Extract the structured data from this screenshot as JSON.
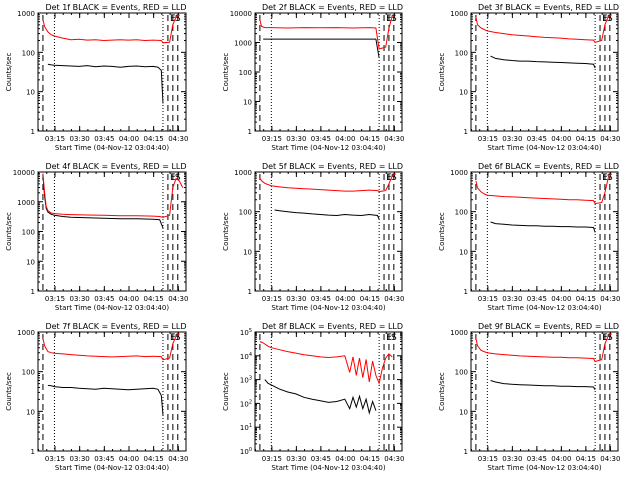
{
  "chart_data": [
    {
      "type": "line",
      "title": "Det 1f BLACK = Events, RED = LLD",
      "xlabel": "Start Time (04-Nov-12 03:04:40)",
      "ylabel": "Counts/sec",
      "xticks": [
        "03:15",
        "03:30",
        "03:45",
        "04:00",
        "04:15",
        "04:30"
      ],
      "yticks": [
        "1",
        "10",
        "100",
        "1000"
      ],
      "ylim": [
        1,
        1000
      ],
      "yscale": "log",
      "xlim_min": [
        5,
        90
      ],
      "markers": [
        {
          "label": "E",
          "t": 82
        },
        {
          "label": "S",
          "t": 85
        }
      ],
      "series": [
        {
          "name": "BLACK = Events",
          "color": "#000000",
          "x": [
            6,
            8,
            10,
            15,
            20,
            25,
            30,
            35,
            40,
            45,
            50,
            55,
            60,
            65,
            70,
            73,
            75,
            76
          ],
          "y": [
            50,
            48,
            47,
            46,
            45,
            44,
            46,
            43,
            45,
            44,
            42,
            44,
            45,
            43,
            44,
            42,
            35,
            5
          ]
        },
        {
          "name": "RED = LLD",
          "color": "#ff0000",
          "x": [
            3,
            4,
            6,
            8,
            10,
            15,
            20,
            25,
            30,
            35,
            40,
            45,
            50,
            55,
            60,
            65,
            70,
            75,
            76,
            80,
            82,
            84,
            86
          ],
          "y": [
            700,
            450,
            330,
            280,
            260,
            230,
            210,
            215,
            205,
            210,
            200,
            205,
            210,
            205,
            210,
            200,
            205,
            200,
            175,
            180,
            500,
            800,
            900
          ]
        }
      ]
    },
    {
      "type": "line",
      "title": "Det 2f BLACK = Events, RED = LLD",
      "xlabel": "Start Time (04-Nov-12 03:04:40)",
      "ylabel": "Counts/sec",
      "xticks": [
        "03:15",
        "03:30",
        "03:45",
        "04:00",
        "04:15",
        "04:30"
      ],
      "yticks": [
        "1",
        "10",
        "100",
        "1000",
        "10000"
      ],
      "ylim": [
        1,
        10000
      ],
      "yscale": "log",
      "markers": [
        {
          "label": "E",
          "t": 82
        },
        {
          "label": "S",
          "t": 85
        }
      ],
      "series": [
        {
          "name": "BLACK = Events",
          "color": "#000000",
          "x": [
            5,
            8,
            10,
            20,
            30,
            40,
            50,
            60,
            70,
            74,
            76
          ],
          "y": [
            1300,
            1300,
            1300,
            1300,
            1300,
            1300,
            1300,
            1300,
            1300,
            1300,
            300
          ]
        },
        {
          "name": "RED = LLD",
          "color": "#ff0000",
          "x": [
            3,
            4,
            6,
            10,
            20,
            30,
            40,
            50,
            60,
            70,
            74,
            76,
            80,
            82,
            84
          ],
          "y": [
            6000,
            3500,
            3200,
            3200,
            3100,
            3200,
            3150,
            3200,
            3100,
            3200,
            3100,
            600,
            700,
            3000,
            8000
          ]
        }
      ]
    },
    {
      "type": "line",
      "title": "Det 3f BLACK = Events, RED = LLD",
      "xlabel": "Start Time (04-Nov-12 03:04:40)",
      "ylabel": "Counts/sec",
      "xticks": [
        "03:15",
        "03:30",
        "03:45",
        "04:00",
        "04:15",
        "04:30"
      ],
      "yticks": [
        "1",
        "10",
        "100",
        "1000"
      ],
      "ylim": [
        1,
        1000
      ],
      "yscale": "log",
      "markers": [
        {
          "label": "E",
          "t": 82
        },
        {
          "label": "S",
          "t": 85
        }
      ],
      "series": [
        {
          "name": "BLACK = Events",
          "color": "#000000",
          "x": [
            12,
            15,
            20,
            25,
            30,
            35,
            40,
            45,
            50,
            55,
            60,
            65,
            70,
            75,
            76
          ],
          "y": [
            80,
            70,
            65,
            62,
            60,
            60,
            58,
            57,
            56,
            55,
            54,
            53,
            52,
            50,
            40
          ]
        },
        {
          "name": "RED = LLD",
          "color": "#ff0000",
          "x": [
            3,
            4,
            6,
            8,
            10,
            15,
            20,
            25,
            30,
            35,
            40,
            45,
            50,
            55,
            60,
            65,
            70,
            75,
            76,
            80,
            82,
            84,
            86
          ],
          "y": [
            800,
            500,
            420,
            380,
            350,
            320,
            300,
            280,
            270,
            260,
            250,
            240,
            235,
            230,
            220,
            215,
            210,
            205,
            180,
            200,
            500,
            800,
            900
          ]
        }
      ]
    },
    {
      "type": "line",
      "title": "Det 4f BLACK = Events, RED = LLD",
      "xlabel": "Start Time (04-Nov-12 03:04:40)",
      "ylabel": "Counts/sec",
      "xticks": [
        "03:15",
        "03:30",
        "03:45",
        "04:00",
        "04:15",
        "04:30"
      ],
      "yticks": [
        "1",
        "10",
        "100",
        "1000",
        "10000"
      ],
      "ylim": [
        1,
        10000
      ],
      "yscale": "log",
      "markers": [
        {
          "label": "E",
          "t": 82
        },
        {
          "label": "S",
          "t": 85
        }
      ],
      "series": [
        {
          "name": "BLACK = Events",
          "color": "#000000",
          "x": [
            3,
            4,
            5,
            6,
            8,
            10,
            15,
            20,
            30,
            40,
            50,
            60,
            70,
            74,
            76
          ],
          "y": [
            8000,
            1500,
            600,
            450,
            380,
            350,
            320,
            300,
            290,
            280,
            270,
            270,
            260,
            250,
            130
          ]
        },
        {
          "name": "RED = LLD",
          "color": "#ff0000",
          "x": [
            3,
            4,
            5,
            6,
            8,
            10,
            15,
            20,
            30,
            40,
            50,
            60,
            70,
            74,
            76,
            80,
            82,
            84,
            86,
            88
          ],
          "y": [
            9000,
            2000,
            700,
            500,
            420,
            400,
            380,
            370,
            360,
            350,
            340,
            340,
            330,
            320,
            300,
            350,
            3000,
            6000,
            5000,
            3000
          ]
        }
      ]
    },
    {
      "type": "line",
      "title": "Det 5f BLACK = Events, RED = LLD",
      "xlabel": "Start Time (04-Nov-12 03:04:40)",
      "ylabel": "Counts/sec",
      "xticks": [
        "03:15",
        "03:30",
        "03:45",
        "04:00",
        "04:15",
        "04:30"
      ],
      "yticks": [
        "1",
        "10",
        "100",
        "1000"
      ],
      "ylim": [
        1,
        1000
      ],
      "yscale": "log",
      "markers": [
        {
          "label": "E",
          "t": 82
        },
        {
          "label": "S",
          "t": 85
        }
      ],
      "series": [
        {
          "name": "BLACK = Events",
          "color": "#000000",
          "x": [
            12,
            15,
            20,
            25,
            30,
            35,
            40,
            45,
            50,
            55,
            60,
            65,
            70,
            75,
            76
          ],
          "y": [
            110,
            105,
            100,
            95,
            92,
            88,
            85,
            82,
            80,
            85,
            82,
            80,
            85,
            80,
            65
          ]
        },
        {
          "name": "RED = LLD",
          "color": "#ff0000",
          "x": [
            3,
            4,
            6,
            8,
            10,
            15,
            20,
            25,
            30,
            35,
            40,
            45,
            50,
            55,
            60,
            65,
            70,
            75,
            76,
            80,
            82,
            84,
            86
          ],
          "y": [
            700,
            600,
            520,
            480,
            450,
            420,
            400,
            390,
            380,
            370,
            360,
            350,
            340,
            330,
            330,
            340,
            350,
            340,
            320,
            340,
            500,
            800,
            900
          ]
        }
      ]
    },
    {
      "type": "line",
      "title": "Det 6f BLACK = Events, RED = LLD",
      "xlabel": "Start Time (04-Nov-12 03:04:40)",
      "ylabel": "Counts/sec",
      "xticks": [
        "03:15",
        "03:30",
        "03:45",
        "04:00",
        "04:15",
        "04:30"
      ],
      "yticks": [
        "1",
        "10",
        "100",
        "1000"
      ],
      "ylim": [
        1,
        1000
      ],
      "yscale": "log",
      "markers": [
        {
          "label": "E",
          "t": 82
        },
        {
          "label": "S",
          "t": 85
        }
      ],
      "series": [
        {
          "name": "BLACK = Events",
          "color": "#000000",
          "x": [
            12,
            15,
            20,
            25,
            30,
            35,
            40,
            45,
            50,
            55,
            60,
            65,
            70,
            75,
            76
          ],
          "y": [
            55,
            50,
            48,
            46,
            45,
            44,
            44,
            43,
            43,
            42,
            42,
            41,
            41,
            40,
            30
          ]
        },
        {
          "name": "RED = LLD",
          "color": "#ff0000",
          "x": [
            3,
            4,
            6,
            8,
            10,
            15,
            20,
            25,
            30,
            35,
            40,
            45,
            50,
            55,
            60,
            65,
            70,
            75,
            76,
            80,
            82,
            84,
            86
          ],
          "y": [
            600,
            400,
            320,
            280,
            260,
            250,
            240,
            235,
            230,
            225,
            220,
            215,
            210,
            205,
            200,
            200,
            195,
            190,
            160,
            170,
            300,
            700,
            900
          ]
        }
      ]
    },
    {
      "type": "line",
      "title": "Det 7f BLACK = Events, RED = LLD",
      "xlabel": "Start Time (04-Nov-12 03:04:40)",
      "ylabel": "Counts/sec",
      "xticks": [
        "03:15",
        "03:30",
        "03:45",
        "04:00",
        "04:15",
        "04:30"
      ],
      "yticks": [
        "1",
        "10",
        "100",
        "1000"
      ],
      "ylim": [
        1,
        1000
      ],
      "yscale": "log",
      "markers": [
        {
          "label": "E",
          "t": 82
        },
        {
          "label": "S",
          "t": 85
        }
      ],
      "series": [
        {
          "name": "BLACK = Events",
          "color": "#000000",
          "x": [
            6,
            8,
            10,
            15,
            20,
            25,
            30,
            35,
            40,
            45,
            50,
            55,
            60,
            65,
            70,
            73,
            75,
            76
          ],
          "y": [
            45,
            44,
            42,
            40,
            40,
            38,
            37,
            36,
            38,
            37,
            36,
            35,
            36,
            37,
            38,
            36,
            25,
            8
          ]
        },
        {
          "name": "RED = LLD",
          "color": "#ff0000",
          "x": [
            3,
            4,
            6,
            8,
            10,
            15,
            20,
            25,
            30,
            35,
            40,
            45,
            50,
            55,
            60,
            65,
            70,
            75,
            76,
            80,
            82,
            84,
            86
          ],
          "y": [
            700,
            450,
            320,
            300,
            290,
            280,
            270,
            260,
            250,
            245,
            240,
            235,
            240,
            245,
            250,
            240,
            245,
            240,
            200,
            220,
            500,
            800,
            900
          ]
        }
      ]
    },
    {
      "type": "line",
      "title": "Det 8f BLACK = Events, RED = LLD",
      "xlabel": "Start Time (04-Nov-12 03:04:40)",
      "ylabel": "Counts/sec",
      "xticks": [
        "03:15",
        "03:30",
        "03:45",
        "04:00",
        "04:15",
        "04:30"
      ],
      "yticks": [
        "10^0",
        "10^1",
        "10^2",
        "10^3",
        "10^4",
        "10^5"
      ],
      "ylim": [
        1,
        100000
      ],
      "yscale": "log",
      "markers": [
        {
          "label": "E",
          "t": 82
        },
        {
          "label": "S",
          "t": 85
        }
      ],
      "series": [
        {
          "name": "BLACK = Events",
          "color": "#000000",
          "x": [
            6,
            8,
            10,
            15,
            20,
            25,
            30,
            35,
            40,
            45,
            50,
            55,
            58,
            60,
            62,
            64,
            66,
            68,
            70,
            72,
            74
          ],
          "y": [
            1000,
            700,
            600,
            400,
            300,
            250,
            180,
            150,
            130,
            110,
            120,
            150,
            60,
            180,
            70,
            200,
            60,
            150,
            40,
            120,
            50
          ]
        },
        {
          "name": "RED = LLD",
          "color": "#ff0000",
          "x": [
            3,
            5,
            8,
            10,
            15,
            20,
            25,
            30,
            35,
            40,
            45,
            50,
            55,
            58,
            60,
            62,
            64,
            66,
            68,
            70,
            72,
            74,
            76,
            78,
            80,
            82,
            84
          ],
          "y": [
            40000,
            35000,
            25000,
            22000,
            18000,
            15000,
            13000,
            11000,
            10000,
            9000,
            8500,
            9000,
            10000,
            2000,
            9000,
            1500,
            8000,
            1200,
            7000,
            800,
            6000,
            1500,
            700,
            3000,
            8000,
            12000,
            9000
          ]
        }
      ]
    },
    {
      "type": "line",
      "title": "Det 9f BLACK = Events, RED = LLD",
      "xlabel": "Start Time (04-Nov-12 03:04:40)",
      "ylabel": "Counts/sec",
      "xticks": [
        "03:15",
        "03:30",
        "03:45",
        "04:00",
        "04:15",
        "04:30"
      ],
      "yticks": [
        "1",
        "10",
        "100",
        "1000"
      ],
      "ylim": [
        1,
        1000
      ],
      "yscale": "log",
      "markers": [
        {
          "label": "E",
          "t": 82
        },
        {
          "label": "S",
          "t": 85
        }
      ],
      "series": [
        {
          "name": "BLACK = Events",
          "color": "#000000",
          "x": [
            12,
            15,
            20,
            25,
            30,
            35,
            40,
            45,
            50,
            55,
            60,
            65,
            70,
            75,
            76
          ],
          "y": [
            60,
            55,
            50,
            48,
            47,
            46,
            45,
            44,
            44,
            43,
            43,
            42,
            42,
            41,
            35
          ]
        },
        {
          "name": "RED = LLD",
          "color": "#ff0000",
          "x": [
            3,
            4,
            6,
            8,
            10,
            15,
            20,
            25,
            30,
            35,
            40,
            45,
            50,
            55,
            60,
            65,
            70,
            75,
            76,
            80,
            82,
            84,
            86
          ],
          "y": [
            700,
            450,
            350,
            320,
            300,
            280,
            270,
            260,
            250,
            245,
            240,
            235,
            230,
            230,
            225,
            225,
            220,
            215,
            180,
            200,
            500,
            800,
            900
          ]
        }
      ]
    }
  ]
}
